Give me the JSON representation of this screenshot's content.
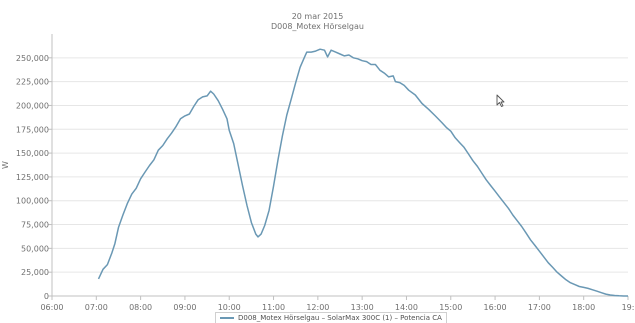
{
  "chart_data": {
    "type": "line",
    "title": "20 mar 2015",
    "subtitle": "D008_Motex Hörselgau",
    "ylabel": "W",
    "xlabel": "",
    "xlim": [
      6,
      19
    ],
    "ylim": [
      0,
      275000
    ],
    "x_ticks": [
      {
        "value": 6,
        "label": "06:00"
      },
      {
        "value": 7,
        "label": "07:00"
      },
      {
        "value": 8,
        "label": "08:00"
      },
      {
        "value": 9,
        "label": "09:00"
      },
      {
        "value": 10,
        "label": "10:00"
      },
      {
        "value": 11,
        "label": "11:00"
      },
      {
        "value": 12,
        "label": "12:00"
      },
      {
        "value": 13,
        "label": "13:00"
      },
      {
        "value": 14,
        "label": "14:00"
      },
      {
        "value": 15,
        "label": "15:00"
      },
      {
        "value": 16,
        "label": "16:00"
      },
      {
        "value": 17,
        "label": "17:00"
      },
      {
        "value": 18,
        "label": "18:00"
      },
      {
        "value": 19,
        "label": "19:"
      }
    ],
    "y_ticks": [
      {
        "value": 0,
        "label": "0"
      },
      {
        "value": 25000,
        "label": "25,000"
      },
      {
        "value": 50000,
        "label": "50,000"
      },
      {
        "value": 75000,
        "label": "75,000"
      },
      {
        "value": 100000,
        "label": "100,000"
      },
      {
        "value": 125000,
        "label": "125,000"
      },
      {
        "value": 150000,
        "label": "150,000"
      },
      {
        "value": 175000,
        "label": "175,000"
      },
      {
        "value": 200000,
        "label": "200,000"
      },
      {
        "value": 225000,
        "label": "225,000"
      },
      {
        "value": 250000,
        "label": "250,000"
      }
    ],
    "grid": {
      "horizontal": true,
      "vertical": false
    },
    "legend_position": "bottom",
    "series": [
      {
        "name": "D008_Motex Hörselgau – SolarMax 300C (1) – Potencia CA",
        "color": "#6a98b4",
        "points": [
          [
            7.05,
            18000
          ],
          [
            7.15,
            28000
          ],
          [
            7.25,
            33000
          ],
          [
            7.35,
            45000
          ],
          [
            7.42,
            55000
          ],
          [
            7.5,
            72000
          ],
          [
            7.6,
            85000
          ],
          [
            7.7,
            97000
          ],
          [
            7.8,
            107000
          ],
          [
            7.9,
            113000
          ],
          [
            8.0,
            123000
          ],
          [
            8.1,
            130000
          ],
          [
            8.2,
            137000
          ],
          [
            8.3,
            143000
          ],
          [
            8.4,
            153000
          ],
          [
            8.5,
            158000
          ],
          [
            8.6,
            165000
          ],
          [
            8.7,
            171000
          ],
          [
            8.8,
            178000
          ],
          [
            8.9,
            186000
          ],
          [
            9.0,
            189000
          ],
          [
            9.1,
            191000
          ],
          [
            9.2,
            199000
          ],
          [
            9.3,
            206000
          ],
          [
            9.4,
            209000
          ],
          [
            9.5,
            210000
          ],
          [
            9.58,
            215000
          ],
          [
            9.65,
            212000
          ],
          [
            9.75,
            205000
          ],
          [
            9.85,
            196000
          ],
          [
            9.95,
            186000
          ],
          [
            10.0,
            174000
          ],
          [
            10.1,
            160000
          ],
          [
            10.2,
            138000
          ],
          [
            10.3,
            116000
          ],
          [
            10.4,
            95000
          ],
          [
            10.5,
            77000
          ],
          [
            10.6,
            65000
          ],
          [
            10.65,
            62000
          ],
          [
            10.72,
            65000
          ],
          [
            10.8,
            74000
          ],
          [
            10.9,
            90000
          ],
          [
            11.0,
            115000
          ],
          [
            11.1,
            143000
          ],
          [
            11.2,
            168000
          ],
          [
            11.3,
            190000
          ],
          [
            11.4,
            207000
          ],
          [
            11.5,
            224000
          ],
          [
            11.6,
            240000
          ],
          [
            11.7,
            251000
          ],
          [
            11.75,
            256000
          ],
          [
            11.85,
            256000
          ],
          [
            11.95,
            257000
          ],
          [
            12.05,
            259000
          ],
          [
            12.15,
            258000
          ],
          [
            12.22,
            251000
          ],
          [
            12.3,
            258000
          ],
          [
            12.4,
            256000
          ],
          [
            12.5,
            254000
          ],
          [
            12.6,
            252000
          ],
          [
            12.7,
            253000
          ],
          [
            12.8,
            250000
          ],
          [
            12.9,
            249000
          ],
          [
            13.0,
            247000
          ],
          [
            13.1,
            246000
          ],
          [
            13.2,
            243000
          ],
          [
            13.3,
            243000
          ],
          [
            13.4,
            237000
          ],
          [
            13.5,
            234000
          ],
          [
            13.6,
            230000
          ],
          [
            13.7,
            231000
          ],
          [
            13.75,
            225000
          ],
          [
            13.85,
            224000
          ],
          [
            13.95,
            221000
          ],
          [
            14.05,
            216000
          ],
          [
            14.2,
            211000
          ],
          [
            14.35,
            202000
          ],
          [
            14.5,
            196000
          ],
          [
            14.65,
            189000
          ],
          [
            14.8,
            182000
          ],
          [
            14.9,
            177000
          ],
          [
            15.0,
            173000
          ],
          [
            15.1,
            166000
          ],
          [
            15.2,
            161000
          ],
          [
            15.3,
            156000
          ],
          [
            15.4,
            149000
          ],
          [
            15.5,
            142000
          ],
          [
            15.6,
            136000
          ],
          [
            15.7,
            129000
          ],
          [
            15.8,
            122000
          ],
          [
            15.9,
            116000
          ],
          [
            16.0,
            110000
          ],
          [
            16.1,
            104000
          ],
          [
            16.2,
            98000
          ],
          [
            16.3,
            92000
          ],
          [
            16.4,
            85000
          ],
          [
            16.5,
            79000
          ],
          [
            16.6,
            73000
          ],
          [
            16.7,
            66000
          ],
          [
            16.8,
            59000
          ],
          [
            16.9,
            53000
          ],
          [
            17.0,
            47000
          ],
          [
            17.1,
            41000
          ],
          [
            17.2,
            35000
          ],
          [
            17.3,
            30000
          ],
          [
            17.4,
            25000
          ],
          [
            17.5,
            21000
          ],
          [
            17.6,
            17000
          ],
          [
            17.7,
            14000
          ],
          [
            17.8,
            12000
          ],
          [
            17.9,
            10000
          ],
          [
            18.0,
            9000
          ],
          [
            18.1,
            8000
          ],
          [
            18.2,
            6500
          ],
          [
            18.3,
            5000
          ],
          [
            18.4,
            3500
          ],
          [
            18.5,
            2000
          ],
          [
            18.6,
            1000
          ],
          [
            18.7,
            500
          ],
          [
            18.8,
            200
          ],
          [
            18.9,
            0
          ],
          [
            19.0,
            0
          ]
        ]
      }
    ]
  },
  "legend": {
    "label": "D008_Motex Hörselgau – SolarMax 300C (1) – Potencia CA"
  },
  "cursor": {
    "icon": "mouse-pointer-icon"
  },
  "colors": {
    "series": "#6a98b4",
    "grid": "#e6e6e6",
    "axis": "#c0c0c0",
    "text": "#707070"
  }
}
